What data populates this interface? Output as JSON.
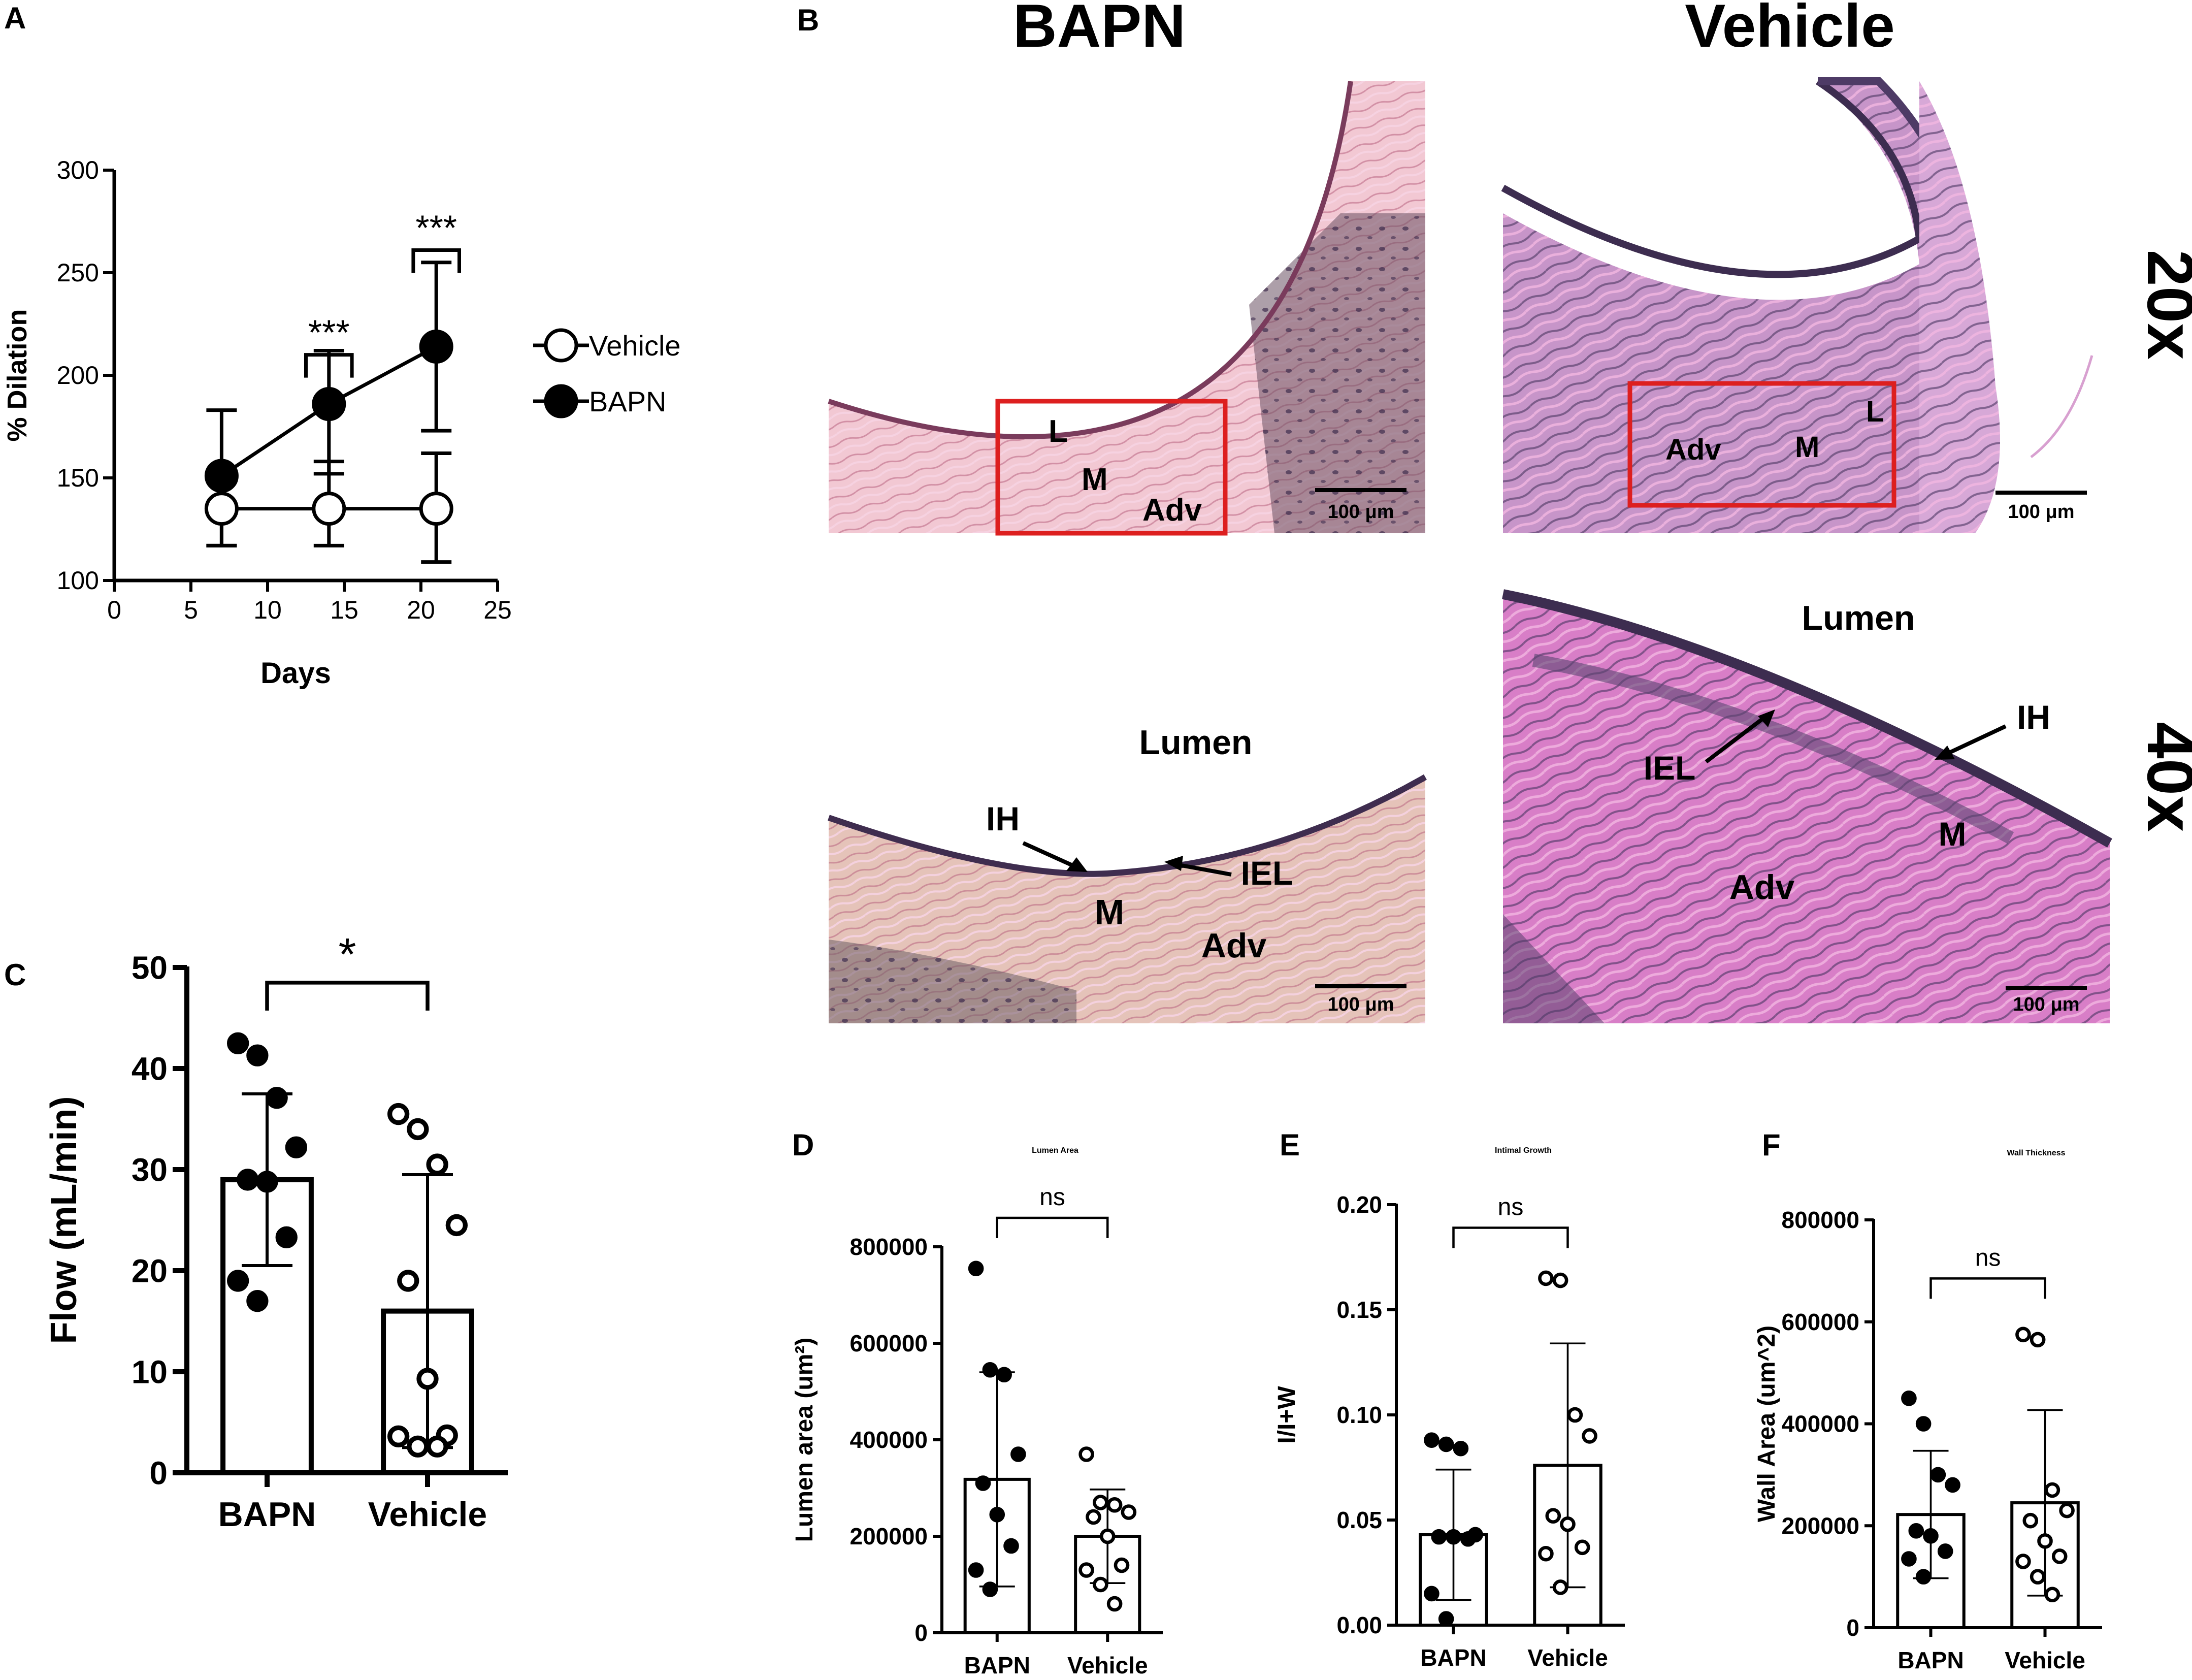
{
  "panel_letters": {
    "a": "A",
    "b": "B",
    "c": "C",
    "d": "D",
    "e": "E",
    "f": "F"
  },
  "colors": {
    "axis": "#000000",
    "scale_box": "#dd1f1f",
    "tissue_pink": "#e9a9cf",
    "tissue_dark": "#5d4a73"
  },
  "panel_b": {
    "col_titles": [
      "BAPN",
      "Vehicle"
    ],
    "row_labels": [
      "20x",
      "40x"
    ],
    "images": [
      {
        "name": "bapn-20x",
        "labels": [
          "L",
          "M",
          "Adv"
        ],
        "scale_bar": "100 μm",
        "has_box": true
      },
      {
        "name": "vehicle-20x",
        "labels": [
          "Adv",
          "M",
          "L"
        ],
        "scale_bar": "100 μm",
        "has_box": true
      },
      {
        "name": "bapn-40x",
        "labels": [
          "Lumen",
          "IH",
          "IEL",
          "M",
          "Adv"
        ],
        "scale_bar": "100 μm",
        "has_box": false
      },
      {
        "name": "vehicle-40x",
        "labels": [
          "Lumen",
          "IH",
          "IEL",
          "M",
          "Adv"
        ],
        "scale_bar": "100 μm",
        "has_box": false
      }
    ]
  },
  "chart_data": [
    {
      "id": "A",
      "type": "line",
      "xlabel": "Days",
      "ylabel": "% Dilation",
      "xlim": [
        0,
        25
      ],
      "ylim": [
        100,
        300
      ],
      "xticks": [
        0,
        5,
        10,
        15,
        20,
        25
      ],
      "yticks": [
        100,
        150,
        200,
        250,
        300
      ],
      "x": [
        7,
        14,
        21
      ],
      "series": [
        {
          "name": "Vehicle",
          "marker": "open-circle",
          "values": [
            135,
            135,
            135
          ],
          "err_low": [
            117,
            117,
            109
          ],
          "err_high": [
            150,
            158,
            162
          ]
        },
        {
          "name": "BAPN",
          "marker": "filled-circle",
          "values": [
            151,
            186,
            214
          ],
          "err_low": [
            117,
            152,
            173
          ],
          "err_high": [
            183,
            212,
            255
          ]
        }
      ],
      "annotations": [
        {
          "x1": 12.5,
          "x2": 15.5,
          "y": 210,
          "text": "***"
        },
        {
          "x1": 19.5,
          "x2": 22.5,
          "y": 261,
          "text": "***"
        }
      ],
      "legend": "right"
    },
    {
      "id": "C",
      "type": "bar",
      "title": "",
      "xlabel": "",
      "ylabel": "Flow (mL/min)",
      "ylim": [
        0,
        50
      ],
      "yticks": [
        0,
        10,
        20,
        30,
        40,
        50
      ],
      "categories": [
        "BAPN",
        "Vehicle"
      ],
      "values": [
        29,
        16
      ],
      "sd": [
        8.5,
        13.5
      ],
      "points": [
        [
          42.5,
          41.3,
          37.1,
          32.2,
          29.0,
          28.8,
          23.3,
          19.0,
          17.0
        ],
        [
          35.5,
          34.0,
          30.5,
          24.5,
          19.0,
          9.3,
          3.7,
          3.6,
          2.6,
          2.6
        ]
      ],
      "point_style": [
        "filled",
        "open"
      ],
      "significance": {
        "text": "*",
        "y": 48.5
      }
    },
    {
      "id": "D",
      "type": "bar",
      "title": "Lumen Area",
      "xlabel": "",
      "ylabel": "Lumen area (um²)",
      "ylim": [
        0,
        800000
      ],
      "yticks": [
        0,
        200000,
        400000,
        600000,
        800000
      ],
      "categories": [
        "BAPN",
        "Vehicle"
      ],
      "values": [
        318000,
        200000
      ],
      "sd": [
        222000,
        97000
      ],
      "points": [
        [
          755000,
          545000,
          535000,
          370000,
          310000,
          245000,
          180000,
          130000,
          90000
        ],
        [
          370000,
          270000,
          265000,
          250000,
          240000,
          200000,
          140000,
          130000,
          100000,
          60000
        ]
      ],
      "point_style": [
        "filled",
        "open"
      ],
      "significance": {
        "text": "ns",
        "y": 860000
      }
    },
    {
      "id": "E",
      "type": "bar",
      "title": "Intimal Growth",
      "xlabel": "",
      "ylabel": "I/I+W",
      "ylim": [
        0,
        0.2
      ],
      "yticks": [
        0.0,
        0.05,
        0.1,
        0.15,
        0.2
      ],
      "tick_format": "2dp",
      "categories": [
        "BAPN",
        "Vehicle"
      ],
      "values": [
        0.043,
        0.076
      ],
      "sd": [
        0.031,
        0.058
      ],
      "points": [
        [
          0.088,
          0.086,
          0.084,
          0.043,
          0.042,
          0.042,
          0.041,
          0.015,
          0.003
        ],
        [
          0.165,
          0.164,
          0.1,
          0.09,
          0.052,
          0.048,
          0.037,
          0.034,
          0.018
        ]
      ],
      "point_style": [
        "filled",
        "open"
      ],
      "significance": {
        "text": "ns",
        "y": 0.189
      }
    },
    {
      "id": "F",
      "type": "bar",
      "title": "Wall Thickness",
      "xlabel": "",
      "ylabel": "Wall Area (um^2)",
      "ylim": [
        0,
        800000
      ],
      "yticks": [
        0,
        200000,
        400000,
        600000,
        800000
      ],
      "categories": [
        "BAPN",
        "Vehicle"
      ],
      "values": [
        222000,
        245000
      ],
      "sd": [
        125000,
        182000
      ],
      "points": [
        [
          450000,
          400000,
          300000,
          280000,
          190000,
          180000,
          150000,
          135000,
          100000
        ],
        [
          575000,
          565000,
          270000,
          230000,
          210000,
          170000,
          140000,
          130000,
          100000,
          65000
        ]
      ],
      "point_style": [
        "filled",
        "open"
      ],
      "significance": {
        "text": "ns",
        "y": 685000
      }
    }
  ]
}
